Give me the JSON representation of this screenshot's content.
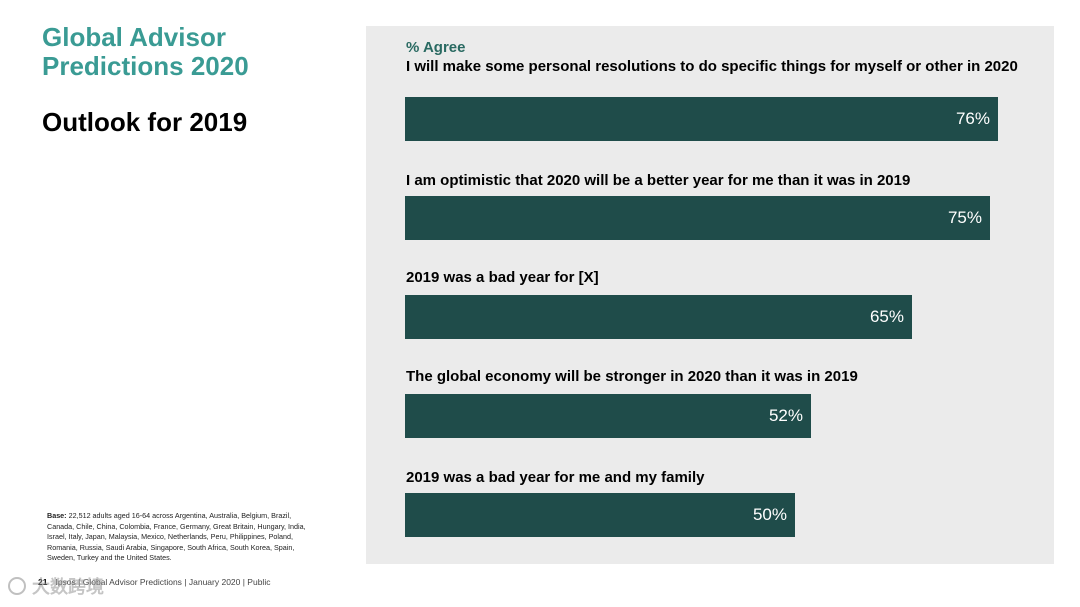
{
  "header": {
    "title": "Global Advisor Predictions 2020",
    "subtitle": "Outlook for 2019"
  },
  "chart_data": {
    "type": "bar",
    "orientation": "horizontal",
    "series_label": "% Agree",
    "categories": [
      "I will make some personal resolutions to do specific things for myself or other in 2020",
      "I am optimistic that 2020 will be a better year for me than it was in 2019",
      "2019 was a bad year for [X]",
      "The global economy will be stronger in 2020 than it was in 2019",
      "2019 was a bad year for me and my family"
    ],
    "values": [
      76,
      75,
      65,
      52,
      50
    ],
    "value_labels": [
      "76%",
      "75%",
      "65%",
      "52%",
      "50%"
    ],
    "xlim": [
      0,
      100
    ],
    "bar_color": "#1f4c4a"
  },
  "base_note": {
    "label": "Base:",
    "text": "22,512 adults aged 16-64 across Argentina, Australia, Belgium, Brazil, Canada, Chile, China, Colombia, France, Germany, Great Britain, Hungary, India, Israel, Italy, Japan, Malaysia, Mexico, Netherlands, Peru, Philippines, Poland, Romania, Russia, Saudi Arabia, Singapore, South Africa, South Korea, Spain, Sweden, Turkey and the United States."
  },
  "footer": {
    "page_number": "21",
    "text": "Ipsos | Global Advisor Predictions | January 2020 | Public"
  },
  "watermark": {
    "text": "大数跨境"
  },
  "colors": {
    "accent": "#3a9b94",
    "panel": "#ebebeb",
    "bar": "#1f4c4a"
  }
}
